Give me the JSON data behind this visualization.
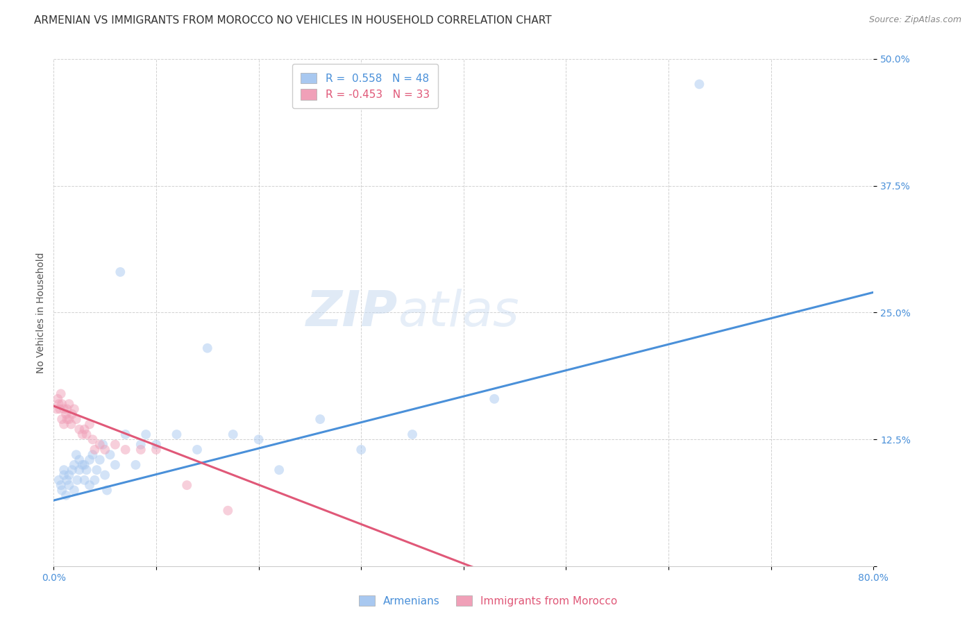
{
  "title": "ARMENIAN VS IMMIGRANTS FROM MOROCCO NO VEHICLES IN HOUSEHOLD CORRELATION CHART",
  "source": "Source: ZipAtlas.com",
  "ylabel": "No Vehicles in Household",
  "xlim": [
    0.0,
    0.8
  ],
  "ylim": [
    0.0,
    0.5
  ],
  "xticks": [
    0.0,
    0.1,
    0.2,
    0.3,
    0.4,
    0.5,
    0.6,
    0.7,
    0.8
  ],
  "xticklabels": [
    "0.0%",
    "",
    "",
    "",
    "",
    "",
    "",
    "",
    "80.0%"
  ],
  "yticks": [
    0.0,
    0.125,
    0.25,
    0.375,
    0.5
  ],
  "yticklabels": [
    "",
    "12.5%",
    "25.0%",
    "37.5%",
    "50.0%"
  ],
  "blue_color": "#a8c8f0",
  "pink_color": "#f0a0b8",
  "blue_line_color": "#4a90d9",
  "pink_line_color": "#e05878",
  "legend_R_blue": "R =  0.558",
  "legend_N_blue": "N = 48",
  "legend_R_pink": "R = -0.453",
  "legend_N_pink": "N = 33",
  "legend_label_blue": "Armenians",
  "legend_label_pink": "Immigrants from Morocco",
  "watermark_zip": "ZIP",
  "watermark_atlas": "atlas",
  "blue_scatter_x": [
    0.005,
    0.007,
    0.008,
    0.01,
    0.01,
    0.012,
    0.013,
    0.015,
    0.015,
    0.018,
    0.02,
    0.02,
    0.022,
    0.023,
    0.025,
    0.025,
    0.028,
    0.03,
    0.03,
    0.032,
    0.035,
    0.035,
    0.038,
    0.04,
    0.042,
    0.045,
    0.048,
    0.05,
    0.052,
    0.055,
    0.06,
    0.065,
    0.07,
    0.08,
    0.085,
    0.09,
    0.1,
    0.12,
    0.14,
    0.15,
    0.175,
    0.2,
    0.22,
    0.26,
    0.3,
    0.35,
    0.43,
    0.63
  ],
  "blue_scatter_y": [
    0.085,
    0.08,
    0.075,
    0.095,
    0.09,
    0.07,
    0.085,
    0.09,
    0.08,
    0.095,
    0.1,
    0.075,
    0.11,
    0.085,
    0.095,
    0.105,
    0.1,
    0.085,
    0.1,
    0.095,
    0.105,
    0.08,
    0.11,
    0.085,
    0.095,
    0.105,
    0.12,
    0.09,
    0.075,
    0.11,
    0.1,
    0.29,
    0.13,
    0.1,
    0.12,
    0.13,
    0.12,
    0.13,
    0.115,
    0.215,
    0.13,
    0.125,
    0.095,
    0.145,
    0.115,
    0.13,
    0.165,
    0.475
  ],
  "pink_scatter_x": [
    0.003,
    0.004,
    0.005,
    0.006,
    0.007,
    0.008,
    0.008,
    0.01,
    0.01,
    0.012,
    0.013,
    0.013,
    0.015,
    0.015,
    0.017,
    0.018,
    0.02,
    0.022,
    0.025,
    0.028,
    0.03,
    0.032,
    0.035,
    0.038,
    0.04,
    0.045,
    0.05,
    0.06,
    0.07,
    0.085,
    0.1,
    0.13,
    0.17
  ],
  "pink_scatter_y": [
    0.155,
    0.165,
    0.16,
    0.155,
    0.17,
    0.145,
    0.16,
    0.14,
    0.155,
    0.15,
    0.155,
    0.145,
    0.16,
    0.145,
    0.14,
    0.15,
    0.155,
    0.145,
    0.135,
    0.13,
    0.135,
    0.13,
    0.14,
    0.125,
    0.115,
    0.12,
    0.115,
    0.12,
    0.115,
    0.115,
    0.115,
    0.08,
    0.055
  ],
  "blue_trendline_x": [
    0.0,
    0.8
  ],
  "blue_trendline_y": [
    0.065,
    0.27
  ],
  "pink_trendline_x": [
    0.0,
    0.42
  ],
  "pink_trendline_y": [
    0.158,
    -0.005
  ],
  "title_fontsize": 11,
  "axis_label_fontsize": 10,
  "tick_fontsize": 10,
  "legend_fontsize": 11,
  "scatter_size": 100,
  "scatter_alpha": 0.5,
  "background_color": "#ffffff",
  "grid_color": "#cccccc",
  "axis_color": "#4a90d9",
  "title_color": "#333333",
  "source_color": "#888888"
}
